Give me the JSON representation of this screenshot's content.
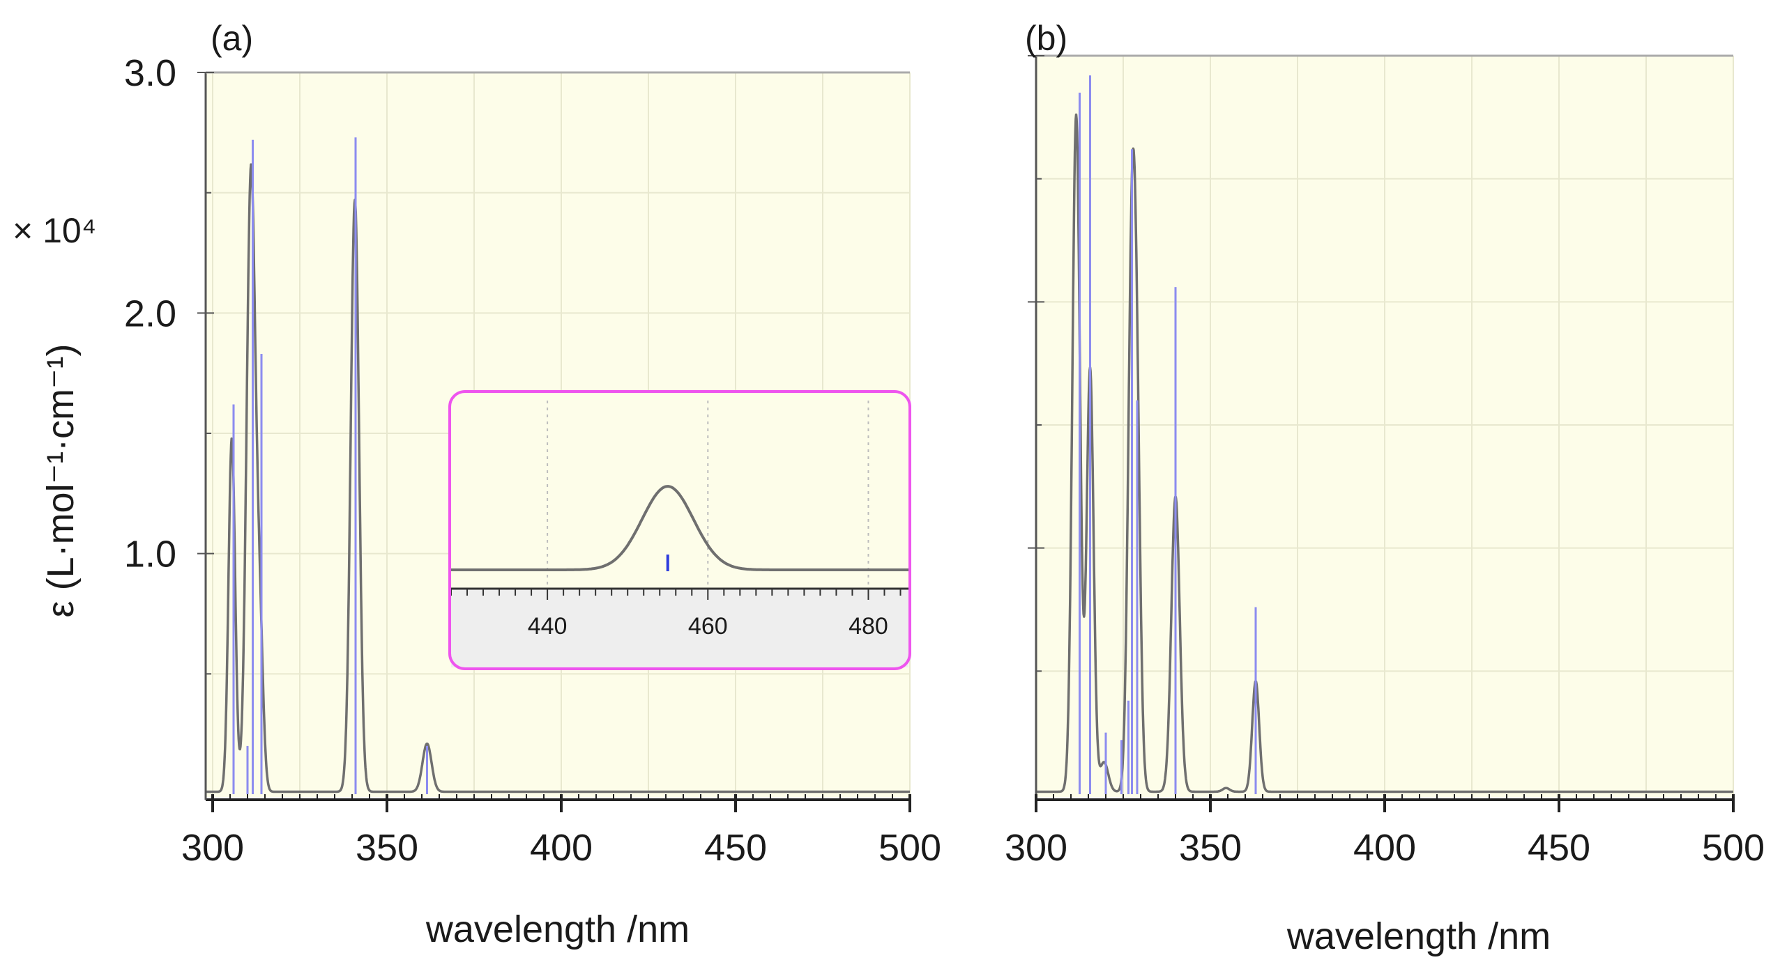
{
  "colors": {
    "plot_background": "#fdfde9",
    "spectrum_line": "#6f6f6f",
    "stick_line": "#8c8cf0",
    "inset_border": "#ee55ee",
    "inset_axis_band": "#eeeeee",
    "inset_stick": "#2d3cdd",
    "grid": "#e8e8cf"
  },
  "ylabel_multiplier": "× 10⁴",
  "chart_data": [
    {
      "panel": "(a)",
      "type": "line",
      "title": "",
      "xlabel": "wavelength /nm",
      "ylabel": "ε (L·mol⁻¹·cm⁻¹)",
      "xlim": [
        298,
        500
      ],
      "ylim": [
        0,
        3.0
      ],
      "x_ticks": [
        300,
        350,
        400,
        450,
        500
      ],
      "x_tick_labels": [
        "300",
        "350",
        "400",
        "450",
        "500"
      ],
      "y_ticks": [
        1.0,
        2.0,
        3.0
      ],
      "y_tick_labels": [
        "1.0",
        "2.0",
        "3.0"
      ],
      "units_note": "×10^4",
      "curve_peaks": [
        {
          "center": 305.5,
          "height": 1.47,
          "width": 0.95
        },
        {
          "center": 311.0,
          "height": 2.58,
          "width": 1.25
        },
        {
          "center": 313.5,
          "height": 0.62,
          "width": 1.0
        },
        {
          "center": 340.8,
          "height": 2.46,
          "width": 1.2
        },
        {
          "center": 361.5,
          "height": 0.2,
          "width": 1.3
        }
      ],
      "baseline": 0.01,
      "sticks": [
        {
          "x": 306.0,
          "y": 1.62
        },
        {
          "x": 310.0,
          "y": 0.2
        },
        {
          "x": 311.5,
          "y": 2.72
        },
        {
          "x": 314.0,
          "y": 1.83
        },
        {
          "x": 341.0,
          "y": 2.73
        },
        {
          "x": 361.5,
          "y": 0.2
        }
      ],
      "inset": {
        "xlim": [
          428,
          485
        ],
        "x_ticks": [
          440,
          460,
          480
        ],
        "x_tick_labels": [
          "440",
          "460",
          "480"
        ],
        "peak": {
          "center": 455.0,
          "height": 1.0,
          "width": 3.2
        },
        "stick": {
          "x": 455.0,
          "y": 0.25
        }
      }
    },
    {
      "panel": "(b)",
      "type": "line",
      "title": "",
      "xlabel": "wavelength /nm",
      "ylabel": "",
      "xlim": [
        300,
        500
      ],
      "ylim": [
        0,
        3.0
      ],
      "x_ticks": [
        300,
        350,
        400,
        450,
        500
      ],
      "x_tick_labels": [
        "300",
        "350",
        "400",
        "450",
        "500"
      ],
      "curve_peaks": [
        {
          "center": 311.5,
          "height": 2.75,
          "width": 1.1
        },
        {
          "center": 315.5,
          "height": 1.72,
          "width": 1.0
        },
        {
          "center": 319.5,
          "height": 0.12,
          "width": 1.2
        },
        {
          "center": 327.5,
          "height": 2.15,
          "width": 1.1
        },
        {
          "center": 329.0,
          "height": 1.1,
          "width": 1.0
        },
        {
          "center": 340.0,
          "height": 1.2,
          "width": 1.2
        },
        {
          "center": 354.5,
          "height": 0.015,
          "width": 1.0
        },
        {
          "center": 363.0,
          "height": 0.45,
          "width": 1.0
        }
      ],
      "baseline": 0.01,
      "sticks": [
        {
          "x": 312.5,
          "y": 2.85
        },
        {
          "x": 315.5,
          "y": 2.92
        },
        {
          "x": 320.0,
          "y": 0.25
        },
        {
          "x": 324.5,
          "y": 0.22
        },
        {
          "x": 326.5,
          "y": 0.38
        },
        {
          "x": 327.5,
          "y": 2.62
        },
        {
          "x": 329.0,
          "y": 1.6
        },
        {
          "x": 340.0,
          "y": 2.06
        },
        {
          "x": 363.0,
          "y": 0.76
        }
      ]
    }
  ]
}
